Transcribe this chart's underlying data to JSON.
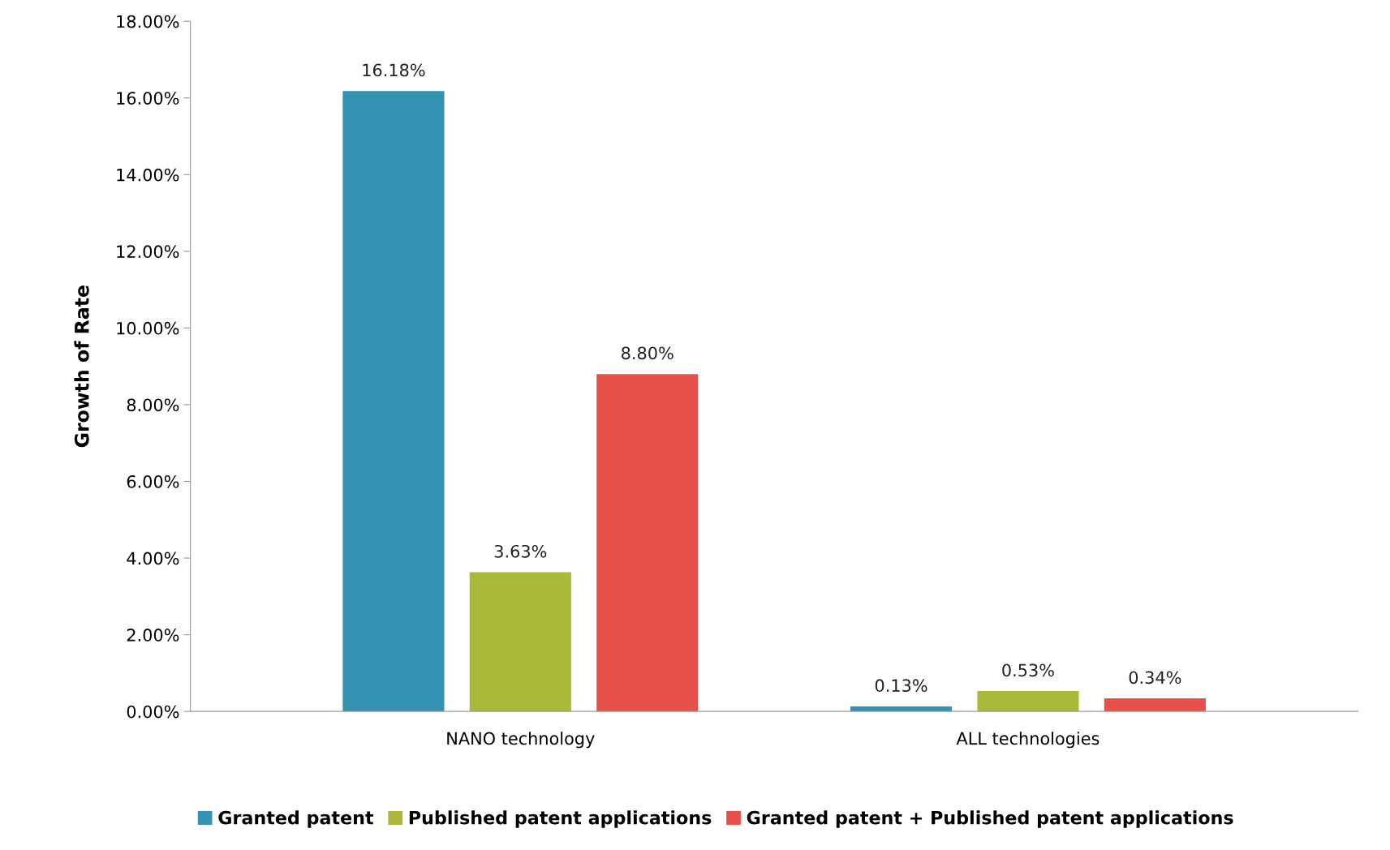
{
  "chart_data": {
    "type": "bar",
    "ylabel": "Growth of Rate",
    "categories": [
      "NANO technology",
      "ALL technologies"
    ],
    "series": [
      {
        "name": "Granted patent",
        "color": "#3592b0",
        "values": [
          16.18,
          0.13
        ],
        "value_labels": [
          "16.18%",
          "0.13%"
        ]
      },
      {
        "name": "Published patent applications",
        "color": "#aab93a",
        "values": [
          3.63,
          0.53
        ],
        "value_labels": [
          "3.63%",
          "0.53%"
        ]
      },
      {
        "name": "Granted patent + Published patent applications",
        "color": "#e8514a",
        "values": [
          8.8,
          0.34
        ],
        "value_labels": [
          "8.80%",
          "0.34%"
        ]
      }
    ],
    "ylim": [
      0,
      18
    ],
    "yticks": [
      {
        "value": 0,
        "label": "0.00%"
      },
      {
        "value": 2,
        "label": "2.00%"
      },
      {
        "value": 4,
        "label": "4.00%"
      },
      {
        "value": 6,
        "label": "6.00%"
      },
      {
        "value": 8,
        "label": "8.00%"
      },
      {
        "value": 10,
        "label": "10.00%"
      },
      {
        "value": 12,
        "label": "12.00%"
      },
      {
        "value": 14,
        "label": "14.00%"
      },
      {
        "value": 16,
        "label": "16.00%"
      },
      {
        "value": 18,
        "label": "18.00%"
      }
    ],
    "grid": false,
    "legend": "bottom"
  }
}
